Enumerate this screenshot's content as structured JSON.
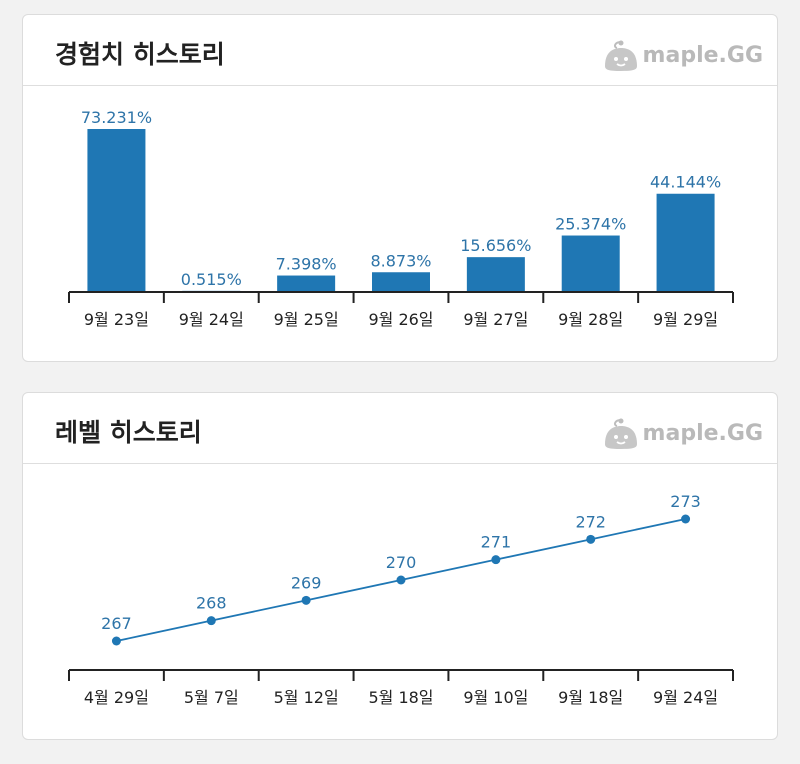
{
  "cards": [
    {
      "title": "경험치 히스토리",
      "logo_text": "maple.GG"
    },
    {
      "title": "레벨 히스토리",
      "logo_text": "maple.GG"
    }
  ],
  "colors": {
    "bar": "#1f77b4",
    "line": "#1f77b4",
    "label": "#2e74a8",
    "axis": "#222222"
  },
  "chart_data": [
    {
      "type": "bar",
      "categories": [
        "9월 23일",
        "9월 24일",
        "9월 25일",
        "9월 26일",
        "9월 27일",
        "9월 28일",
        "9월 29일"
      ],
      "values": [
        73.231,
        0.515,
        7.398,
        8.873,
        15.656,
        25.374,
        44.144
      ],
      "data_labels": [
        "73.231%",
        "0.515%",
        "7.398%",
        "8.873%",
        "15.656%",
        "25.374%",
        "44.144%"
      ],
      "ylim": [
        0,
        73.231
      ]
    },
    {
      "type": "line",
      "categories": [
        "4월 29일",
        "5월 7일",
        "5월 12일",
        "5월 18일",
        "9월 10일",
        "9월 18일",
        "9월 24일"
      ],
      "values": [
        267,
        268,
        269,
        270,
        271,
        272,
        273
      ],
      "data_labels": [
        "267",
        "268",
        "269",
        "270",
        "271",
        "272",
        "273"
      ],
      "ylim": [
        267,
        273
      ]
    }
  ]
}
